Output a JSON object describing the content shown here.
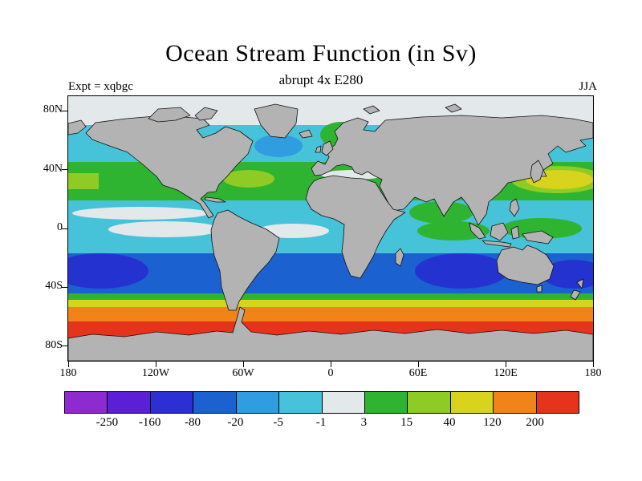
{
  "header": {
    "title": "Ocean Stream Function (in Sv)",
    "subtitle": "abrupt 4x E280",
    "experiment": "Expt = xqbgc",
    "season": "JJA"
  },
  "axes": {
    "lat_ticks": [
      {
        "label": "80N",
        "value": 80
      },
      {
        "label": "40N",
        "value": 40
      },
      {
        "label": "0",
        "value": 0
      },
      {
        "label": "40S",
        "value": -40
      },
      {
        "label": "80S",
        "value": -80
      }
    ],
    "lon_ticks": [
      {
        "label": "180",
        "value": -180
      },
      {
        "label": "120W",
        "value": -120
      },
      {
        "label": "60W",
        "value": -60
      },
      {
        "label": "0",
        "value": 0
      },
      {
        "label": "60E",
        "value": 60
      },
      {
        "label": "120E",
        "value": 120
      },
      {
        "label": "180",
        "value": 180
      }
    ]
  },
  "colorbar": {
    "labels": [
      "-250",
      "-160",
      "-80",
      "-20",
      "-5",
      "-1",
      "3",
      "15",
      "40",
      "120",
      "200"
    ],
    "colors": [
      "#8d2bd0",
      "#5b1fd6",
      "#2b2fd4",
      "#1b61cf",
      "#2f9de0",
      "#46c3d9",
      "#e3e8ea",
      "#2eb430",
      "#8fcb25",
      "#d8d31c",
      "#f08418",
      "#e5341b"
    ]
  },
  "chart_data": {
    "type": "heatmap",
    "title": "Ocean Stream Function (in Sv)",
    "subtitle": "abrupt 4x E280",
    "experiment": "Expt = xqbgc",
    "season": "JJA",
    "units": "Sv",
    "projection": "equirectangular world map, 180W to 180E, 90S to 90N",
    "land_color": "#b3b3b3",
    "colorbar_levels": [
      -250,
      -160,
      -80,
      -20,
      -5,
      -1,
      3,
      15,
      40,
      120,
      200
    ],
    "colorbar_colors": [
      "#8d2bd0",
      "#5b1fd6",
      "#2b2fd4",
      "#1b61cf",
      "#2f9de0",
      "#46c3d9",
      "#e3e8ea",
      "#2eb430",
      "#8fcb25",
      "#d8d31c",
      "#f08418",
      "#e5341b"
    ],
    "lat_ticks": [
      "80N",
      "40N",
      "0",
      "40S",
      "80S"
    ],
    "lon_ticks": [
      "180",
      "120W",
      "60W",
      "0",
      "60E",
      "120E",
      "180"
    ],
    "features": [
      {
        "region": "Antarctic Circumpolar Current band (45S-65S)",
        "value_sv": "120 to >200 (orange-red)"
      },
      {
        "region": "Southern subtropical gyres (15S-45S, all basins)",
        "value_sv": "-80 to -20 (blue)"
      },
      {
        "region": "Gyre cores in Indian and South Pacific oceans",
        "value_sv": "-160 to -80 (dark blue)"
      },
      {
        "region": "Northern subtropical gyres (15N-45N)",
        "value_sv": "3 to 15 (green)"
      },
      {
        "region": "Kuroshio / NW Pacific core (25N-40N)",
        "value_sv": "40 to 120 (yellow)"
      },
      {
        "region": "Equatorial band and coastal margins",
        "value_sv": "-1 to 3 (near white)"
      },
      {
        "region": "Subpolar North Atlantic and North Pacific (45N-65N)",
        "value_sv": "-5 to -1 (cyan)"
      }
    ]
  }
}
